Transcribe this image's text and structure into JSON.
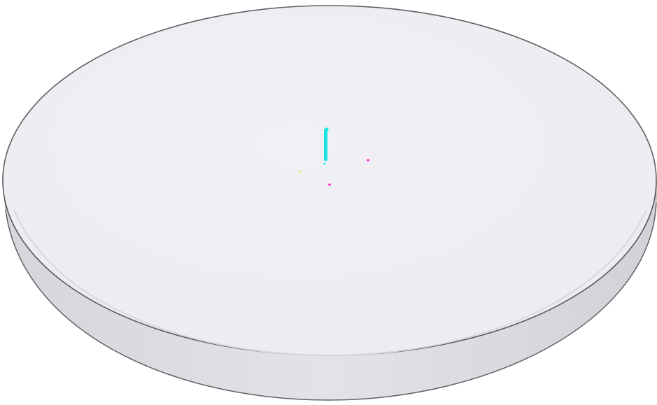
{
  "scene": {
    "object": "disc-platform",
    "colors": {
      "background": "#ffffff",
      "top_face": "#efeef3",
      "top_face_highlight": "#f3f2f6",
      "side_face": "#dddce2",
      "side_face_dark": "#cfced6",
      "edge_outline": "#2a2a2e",
      "cyan_marker": "#19e3e3",
      "magenta_marker": "#ff2bd0",
      "yellow_marker": "#e0dc3a"
    },
    "markers": [
      {
        "name": "cyan-rod",
        "color": "cyan"
      },
      {
        "name": "magenta-dot-right",
        "color": "magenta"
      },
      {
        "name": "magenta-dot-bottom",
        "color": "magenta"
      },
      {
        "name": "yellow-dot",
        "color": "yellow"
      }
    ]
  }
}
